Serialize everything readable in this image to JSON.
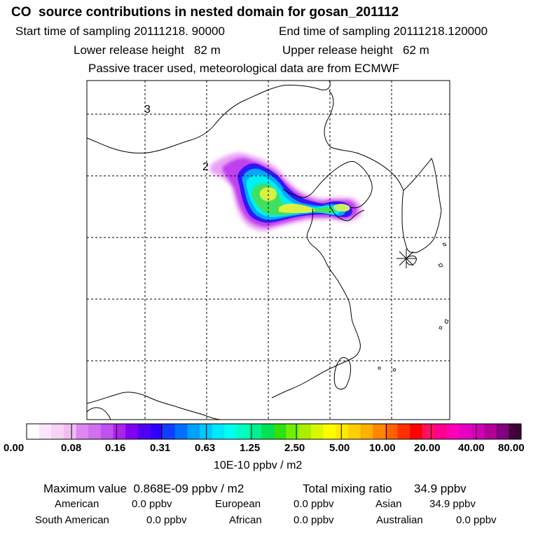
{
  "header": {
    "title": "CO  source contributions in nested domain for gosan_201112",
    "start_label": "Start time of sampling 20111218. 90000",
    "end_label": "End time of sampling 20111218.120000",
    "lower_label": "Lower release height   82 m",
    "upper_label": "Upper release height   62 m",
    "tracer_note": "Passive tracer used, meteorological data are from ECMWF"
  },
  "map": {
    "grid_labels": [
      "3",
      "2"
    ],
    "receptor": "gosan"
  },
  "colorbar": {
    "unit": "10E-10 ppbv / m2",
    "ticks": [
      "0.00",
      "0.08",
      "0.16",
      "0.31",
      "0.63",
      "1.25",
      "2.50",
      "5.00",
      "10.00",
      "20.00",
      "40.00",
      "80.00"
    ],
    "colors": [
      "#ffffff",
      "#fbe6fb",
      "#f6d2f6",
      "#efbcf0",
      "#dd88f0",
      "#d070f0",
      "#c050f0",
      "#b020f0",
      "#8000f0",
      "#5000f0",
      "#3000ff",
      "#1040ff",
      "#0070ff",
      "#00a0ff",
      "#00c8ff",
      "#00e8ff",
      "#00ffee",
      "#00ffc0",
      "#00f090",
      "#00e050",
      "#30e010",
      "#70f000",
      "#a8f000",
      "#d8f800",
      "#ffff00",
      "#ffe800",
      "#ffd000",
      "#ffb000",
      "#ff8800",
      "#ff6000",
      "#ff3000",
      "#ff0000",
      "#ff1060",
      "#ff0090",
      "#ff00b8",
      "#e800c0",
      "#d000b8",
      "#b00098",
      "#800080",
      "#400038"
    ]
  },
  "footer": {
    "maximum_label": "Maximum value  0.868E-09 ppbv / m2",
    "total_label": "Total mixing ratio",
    "total_value": "34.9 ppbv",
    "regions": [
      {
        "name": "American",
        "value": "0.0 ppbv"
      },
      {
        "name": "European",
        "value": "0.0 ppbv"
      },
      {
        "name": "Asian",
        "value": "34.9 ppbv"
      },
      {
        "name": "South American",
        "value": "0.0 ppbv"
      },
      {
        "name": "African",
        "value": "0.0 ppbv"
      },
      {
        "name": "Australian",
        "value": "0.0 ppbv"
      }
    ]
  }
}
